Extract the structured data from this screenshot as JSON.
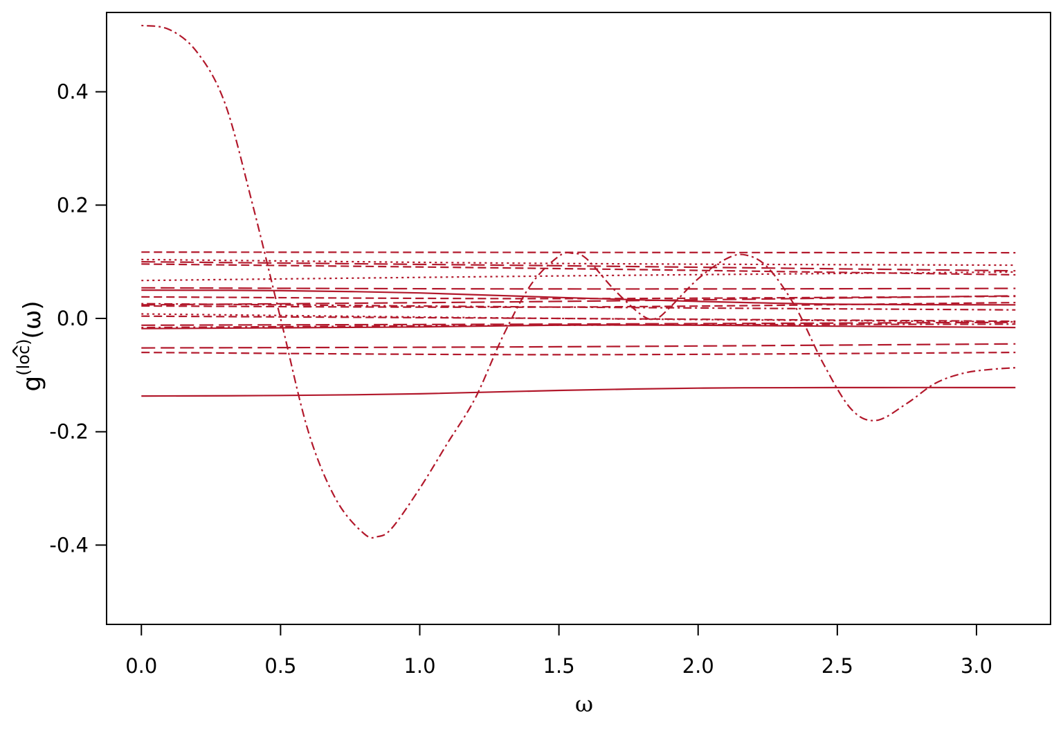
{
  "chart_data": {
    "type": "line",
    "xlabel": "ω",
    "ylabel": {
      "base": "g",
      "hat": "^",
      "superscript": "(loc)",
      "argument": "(ω)"
    },
    "xlim": [
      -0.125,
      3.266
    ],
    "ylim": [
      -0.54,
      0.54
    ],
    "x_ticks": [
      0.0,
      0.5,
      1.0,
      1.5,
      2.0,
      2.5,
      3.0
    ],
    "x_tick_labels": [
      "0.0",
      "0.5",
      "1.0",
      "1.5",
      "2.0",
      "2.5",
      "3.0"
    ],
    "y_ticks": [
      -0.4,
      -0.2,
      0.0,
      0.2,
      0.4
    ],
    "y_tick_labels": [
      "-0.4",
      "-0.2",
      "0.0",
      "0.2",
      "0.4"
    ],
    "grid": false,
    "line_color": "#b2182b",
    "series": [
      {
        "dash": "dotdash",
        "x": [
          0,
          0.1,
          0.2,
          0.3,
          0.4,
          0.5,
          0.6,
          0.7,
          0.8,
          0.85,
          0.9,
          1.0,
          1.1,
          1.2,
          1.3,
          1.4,
          1.5,
          1.55,
          1.6,
          1.7,
          1.8,
          1.85,
          1.9,
          2.0,
          2.1,
          2.17,
          2.25,
          2.35,
          2.45,
          2.55,
          2.64,
          2.75,
          2.85,
          2.95,
          3.05,
          3.14
        ],
        "y": [
          0.517,
          0.51,
          0.47,
          0.38,
          0.2,
          0.0,
          -0.2,
          -0.32,
          -0.38,
          -0.385,
          -0.37,
          -0.3,
          -0.22,
          -0.14,
          -0.03,
          0.06,
          0.11,
          0.115,
          0.105,
          0.05,
          0.005,
          0.0,
          0.02,
          0.07,
          0.105,
          0.112,
          0.09,
          0.02,
          -0.08,
          -0.16,
          -0.18,
          -0.15,
          -0.115,
          -0.097,
          -0.09,
          -0.087
        ]
      },
      {
        "dash": "dashed",
        "x": [
          0,
          3.14
        ],
        "y": [
          0.117,
          0.116
        ]
      },
      {
        "dash": "dotted",
        "x": [
          0,
          1.5,
          3.14
        ],
        "y": [
          0.104,
          0.097,
          0.094
        ]
      },
      {
        "dash": "longdash",
        "x": [
          0,
          1.5,
          3.14
        ],
        "y": [
          0.1,
          0.093,
          0.084
        ]
      },
      {
        "dash": "dashed",
        "x": [
          0,
          1.5,
          3.14
        ],
        "y": [
          0.096,
          0.088,
          0.077
        ]
      },
      {
        "dash": "dotted",
        "x": [
          0,
          1.5,
          3.14
        ],
        "y": [
          0.067,
          0.075,
          0.082
        ]
      },
      {
        "dash": "longdash",
        "x": [
          0,
          1.5,
          3.14
        ],
        "y": [
          0.054,
          0.052,
          0.053
        ]
      },
      {
        "dash": "solid",
        "x": [
          0,
          0.5,
          1.0,
          1.5,
          2.0,
          2.5,
          3.14
        ],
        "y": [
          0.05,
          0.049,
          0.045,
          0.037,
          0.03,
          0.025,
          0.024
        ]
      },
      {
        "dash": "dashed",
        "x": [
          0,
          1.5,
          3.14
        ],
        "y": [
          0.038,
          0.035,
          0.039
        ]
      },
      {
        "dash": "longdash",
        "x": [
          0,
          1.5,
          3.14
        ],
        "y": [
          0.024,
          0.03,
          0.04
        ]
      },
      {
        "dash": "dotdash",
        "x": [
          0,
          1.5,
          3.14
        ],
        "y": [
          0.026,
          0.02,
          0.015
        ]
      },
      {
        "dash": "dashed",
        "x": [
          0,
          1.5,
          3.14
        ],
        "y": [
          0.022,
          0.02,
          0.028
        ]
      },
      {
        "dash": "dotted",
        "x": [
          0,
          1.5,
          3.14
        ],
        "y": [
          0.008,
          0.0,
          -0.006
        ]
      },
      {
        "dash": "dashed",
        "x": [
          0,
          1.5,
          3.14
        ],
        "y": [
          0.004,
          0.0,
          -0.005
        ]
      },
      {
        "dash": "longdash",
        "x": [
          0,
          1.5,
          3.14
        ],
        "y": [
          -0.012,
          -0.01,
          -0.007
        ]
      },
      {
        "dash": "dotdash",
        "x": [
          0,
          1.5,
          3.14
        ],
        "y": [
          -0.016,
          -0.012,
          -0.01
        ]
      },
      {
        "dash": "solid",
        "x": [
          0,
          1.0,
          1.5,
          2.0,
          3.14
        ],
        "y": [
          -0.018,
          -0.015,
          -0.012,
          -0.012,
          -0.016
        ]
      },
      {
        "dash": "longdash",
        "x": [
          0,
          1.5,
          3.14
        ],
        "y": [
          -0.052,
          -0.05,
          -0.045
        ]
      },
      {
        "dash": "dashed",
        "x": [
          0,
          1.5,
          3.14
        ],
        "y": [
          -0.06,
          -0.064,
          -0.06
        ]
      },
      {
        "dash": "solid",
        "x": [
          0,
          0.5,
          1.0,
          1.5,
          2.0,
          2.5,
          3.14
        ],
        "y": [
          -0.137,
          -0.136,
          -0.133,
          -0.127,
          -0.123,
          -0.122,
          -0.122
        ]
      }
    ]
  }
}
